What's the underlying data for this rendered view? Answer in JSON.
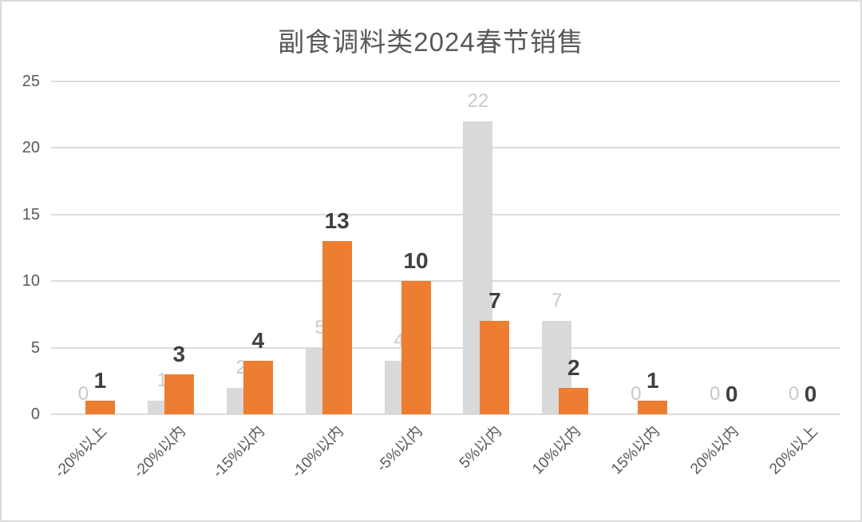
{
  "chart_data": {
    "type": "bar",
    "title": "副食调料类2024春节销售",
    "categories": [
      "-20%以上",
      "-20%以内",
      "-15%以内",
      "-10%以内",
      "-5%以内",
      "5%以内",
      "10%以内",
      "15%以内",
      "20%以内",
      "20%以上"
    ],
    "series": [
      {
        "name": "gray-secondary-series",
        "color": "#D9D9D9",
        "label_color": "#C9C9C9",
        "values": [
          0,
          1,
          2,
          5,
          4,
          22,
          7,
          0,
          0,
          0
        ]
      },
      {
        "name": "orange-primary-series",
        "color": "#ED7D31",
        "label_color": "#404040",
        "values": [
          1,
          3,
          4,
          13,
          10,
          7,
          2,
          1,
          0,
          0
        ]
      }
    ],
    "xlabel": "",
    "ylabel": "",
    "ylim": [
      0,
      25
    ],
    "y_ticks": [
      0,
      5,
      10,
      15,
      20,
      25
    ],
    "grid": true,
    "legend_position": "none",
    "bar_layout": "overlapped",
    "data_labels": true
  },
  "colors": {
    "background": "#FFFFFF",
    "border": "#DBDBDB",
    "gridline": "#DCDCDC",
    "title_text": "#595959",
    "axis_text": "#595959"
  }
}
